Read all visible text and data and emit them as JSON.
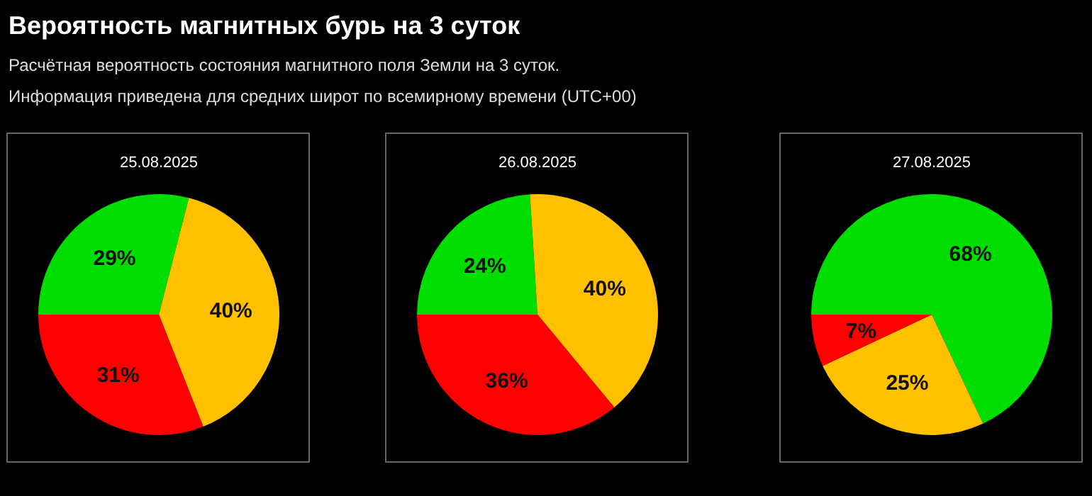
{
  "chart_data": [
    {
      "type": "other",
      "title": "Вероятность магнитных бурь на 3 суток",
      "annotations": [
        "Расчётная вероятность состояния магнитного поля Земли на 3 суток.",
        "Информация приведена для средних широт по всемирному времени (UTC+00)"
      ]
    },
    {
      "type": "pie",
      "title": "25.08.2025",
      "categories": [
        null,
        null,
        null
      ],
      "values": [
        29,
        40,
        31
      ],
      "colors": [
        "#00dd00",
        "#ffc000",
        "#ff0000"
      ],
      "value_labels": [
        "29%",
        "40%",
        "31%"
      ]
    },
    {
      "type": "pie",
      "title": "26.08.2025",
      "categories": [
        null,
        null,
        null
      ],
      "values": [
        24,
        40,
        36
      ],
      "colors": [
        "#00dd00",
        "#ffc000",
        "#ff0000"
      ],
      "value_labels": [
        "24%",
        "40%",
        "36%"
      ]
    },
    {
      "type": "pie",
      "title": "27.08.2025",
      "categories": [
        null,
        null,
        null
      ],
      "values": [
        68,
        25,
        7
      ],
      "colors": [
        "#00dd00",
        "#ffc000",
        "#ff0000"
      ],
      "value_labels": [
        "68%",
        "25%",
        "7%"
      ]
    }
  ]
}
